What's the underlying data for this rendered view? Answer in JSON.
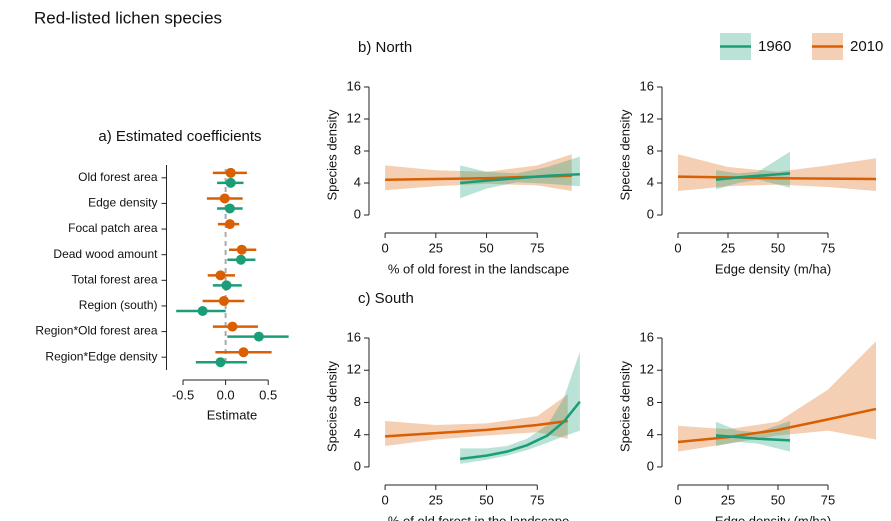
{
  "title": "Red-listed lichen species",
  "chart_data": [
    {
      "type": "coefficient",
      "title": "a) Estimated coefficients",
      "xlabel": "Estimate",
      "categories": [
        "Old forest area",
        "Edge density",
        "Focal patch area",
        "Dead wood amount",
        "Total forest area",
        "Region (south)",
        "Region*Old forest area",
        "Region*Edge density"
      ],
      "series": [
        {
          "name": "2010",
          "color": "#d95f02",
          "values": [
            0.06,
            -0.01,
            0.05,
            0.19,
            -0.06,
            -0.02,
            0.08,
            0.21
          ],
          "lower": [
            -0.15,
            -0.22,
            -0.09,
            0.04,
            -0.21,
            -0.27,
            -0.15,
            -0.12
          ],
          "upper": [
            0.25,
            0.2,
            0.16,
            0.36,
            0.11,
            0.22,
            0.38,
            0.54
          ]
        },
        {
          "name": "1960",
          "color": "#1b9e77",
          "values": [
            0.06,
            0.05,
            null,
            0.18,
            0.01,
            -0.27,
            0.39,
            -0.06
          ],
          "lower": [
            -0.1,
            -0.1,
            null,
            0.02,
            -0.15,
            -0.58,
            0.02,
            -0.35
          ],
          "upper": [
            0.21,
            0.2,
            null,
            0.35,
            0.19,
            0,
            0.74,
            0.25
          ]
        }
      ],
      "xlim": [
        -0.6,
        0.75
      ],
      "xticks": [
        -0.5,
        {
          "value": 0,
          "label": "0.0"
        },
        0.5
      ]
    },
    {
      "type": "ribbon-line",
      "title": "b) North",
      "xlabel": "% of old forest in the landscape",
      "ylabel": "Species density",
      "legend": "top-right",
      "xlim": [
        -3,
        100
      ],
      "xticks": [
        0,
        25,
        50,
        75
      ],
      "ylim": [
        -1,
        16
      ],
      "yticks": [
        0,
        4,
        8,
        12,
        16
      ],
      "series": [
        {
          "name": "1960",
          "color": "#1b9e77",
          "x": [
            37,
            50,
            65,
            80,
            96
          ],
          "values": [
            4.0,
            4.3,
            4.6,
            4.9,
            5.1
          ],
          "lower": [
            2.1,
            3.3,
            4.1,
            3.9,
            3.6
          ],
          "upper": [
            6.2,
            5.4,
            5.2,
            6.0,
            7.3
          ]
        },
        {
          "name": "2010",
          "color": "#d95f02",
          "x": [
            0,
            25,
            50,
            75,
            92
          ],
          "values": [
            4.4,
            4.5,
            4.6,
            4.8,
            4.9
          ],
          "lower": [
            3.1,
            3.6,
            3.9,
            3.7,
            3.0
          ],
          "upper": [
            6.2,
            5.6,
            5.4,
            6.2,
            7.6
          ]
        }
      ]
    },
    {
      "type": "ribbon-line",
      "xlabel": "Edge density (m/ha)",
      "ylabel": "Species density",
      "xlim": [
        -3,
        103
      ],
      "xticks": [
        0,
        25,
        50,
        75
      ],
      "ylim": [
        -1,
        16
      ],
      "yticks": [
        0,
        4,
        8,
        12,
        16
      ],
      "series": [
        {
          "name": "1960",
          "color": "#1b9e77",
          "x": [
            19,
            30,
            40,
            56
          ],
          "values": [
            4.4,
            4.7,
            4.9,
            5.2
          ],
          "lower": [
            3.2,
            4.0,
            4.4,
            3.4
          ],
          "upper": [
            5.6,
            5.2,
            5.4,
            7.9
          ]
        },
        {
          "name": "2010",
          "color": "#d95f02",
          "x": [
            0,
            25,
            50,
            75,
            99
          ],
          "values": [
            4.8,
            4.7,
            4.6,
            4.55,
            4.5
          ],
          "lower": [
            3.0,
            3.6,
            3.8,
            3.5,
            3.0
          ],
          "upper": [
            7.6,
            6.0,
            5.4,
            6.2,
            7.1
          ]
        }
      ]
    },
    {
      "type": "ribbon-line",
      "title": "c) South",
      "xlabel": "% of old forest in the landscape",
      "ylabel": "Species density",
      "xlim": [
        -3,
        100
      ],
      "xticks": [
        0,
        25,
        50,
        75
      ],
      "ylim": [
        -1,
        16
      ],
      "yticks": [
        0,
        4,
        8,
        12,
        16
      ],
      "series": [
        {
          "name": "1960",
          "color": "#1b9e77",
          "x": [
            37,
            50,
            60,
            70,
            80,
            88,
            96
          ],
          "values": [
            1.0,
            1.4,
            1.9,
            2.7,
            3.9,
            5.6,
            8.1
          ],
          "lower": [
            0.4,
            0.9,
            1.4,
            2.1,
            3.0,
            3.8,
            4.5
          ],
          "upper": [
            2.3,
            2.3,
            2.6,
            3.5,
            5.2,
            8.5,
            14.3
          ]
        },
        {
          "name": "2010",
          "color": "#d95f02",
          "x": [
            0,
            25,
            50,
            75,
            90
          ],
          "values": [
            3.8,
            4.2,
            4.6,
            5.2,
            5.7
          ],
          "lower": [
            2.6,
            3.4,
            3.9,
            4.3,
            3.5
          ],
          "upper": [
            5.7,
            5.2,
            5.4,
            6.3,
            9.0
          ]
        }
      ]
    },
    {
      "type": "ribbon-line",
      "xlabel": "Edge density (m/ha)",
      "ylabel": "Species density",
      "xlim": [
        -3,
        103
      ],
      "xticks": [
        0,
        25,
        50,
        75
      ],
      "ylim": [
        -1,
        16
      ],
      "yticks": [
        0,
        4,
        8,
        12,
        16
      ],
      "series": [
        {
          "name": "1960",
          "color": "#1b9e77",
          "x": [
            19,
            30,
            40,
            56
          ],
          "values": [
            3.9,
            3.7,
            3.5,
            3.3
          ],
          "lower": [
            2.6,
            3.1,
            2.9,
            1.9
          ],
          "upper": [
            5.6,
            4.5,
            4.3,
            5.7
          ]
        },
        {
          "name": "2010",
          "color": "#d95f02",
          "x": [
            0,
            25,
            50,
            75,
            99
          ],
          "values": [
            3.1,
            3.7,
            4.6,
            5.9,
            7.2
          ],
          "lower": [
            1.9,
            2.9,
            3.9,
            4.5,
            3.4
          ],
          "upper": [
            5.1,
            4.7,
            5.6,
            9.6,
            15.6
          ]
        }
      ]
    }
  ]
}
